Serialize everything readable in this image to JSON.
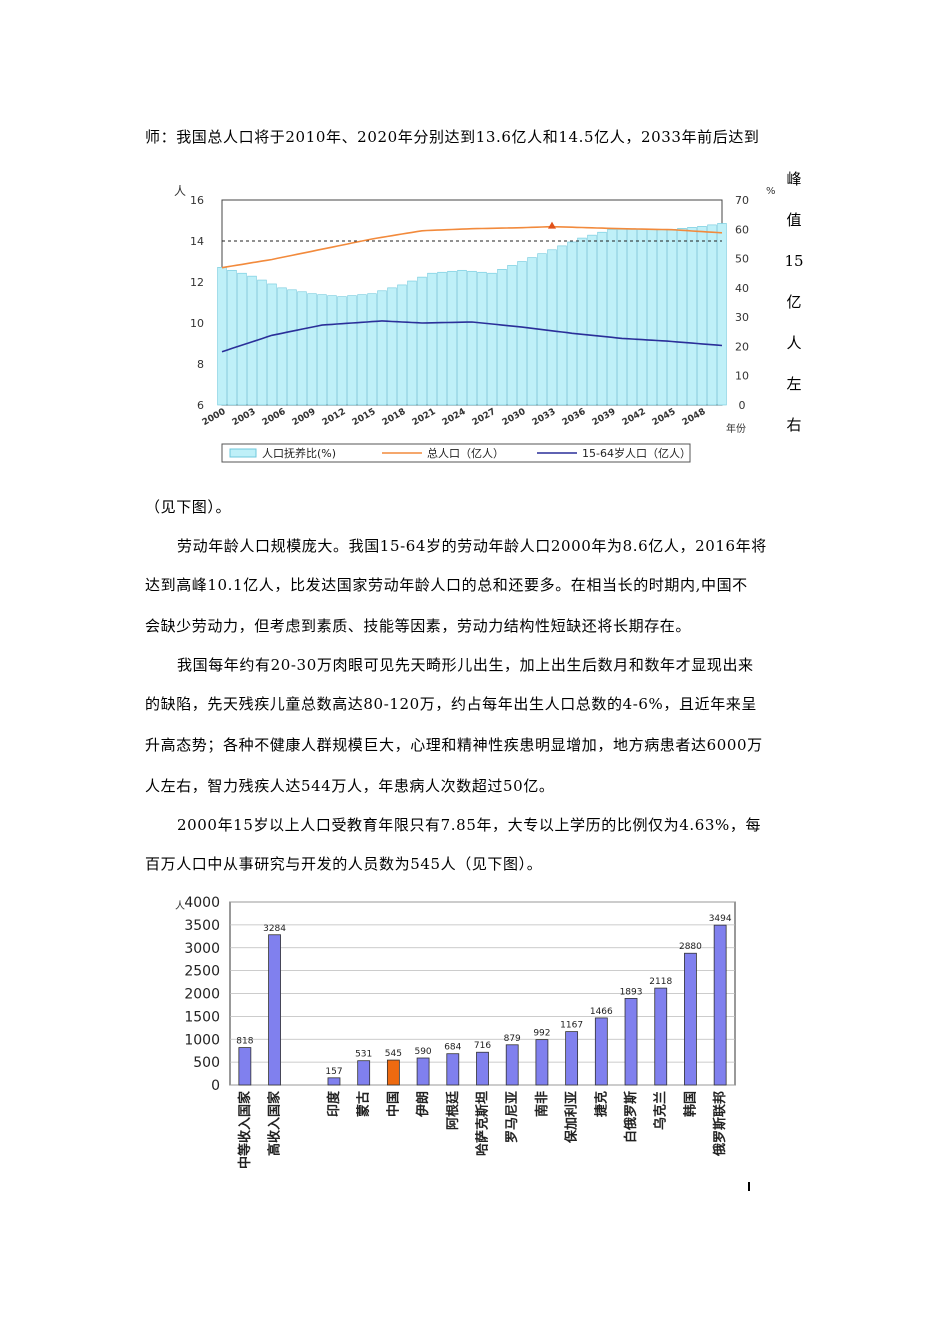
{
  "paragraphs": {
    "p1_line1": "师：我国总人口将于2010年、2020年分别达到13.6亿人和14.5亿人，2033年前后达到",
    "p1_vertical": [
      "峰",
      "值",
      "15",
      "亿",
      "人",
      "左",
      "右"
    ],
    "p1_line2": "（见下图）。",
    "p2_line1": "劳动年龄人口规模庞大。我国15-64岁的劳动年龄人口2000年为8.6亿人，2016年将",
    "p2_line2": "达到高峰10.1亿人，比发达国家劳动年龄人口的总和还要多。在相当长的时期内,中国不",
    "p2_line3": "会缺少劳动力，但考虑到素质、技能等因素，劳动力结构性短缺还将长期存在。",
    "p3_line1": "我国每年约有20-30万肉眼可见先天畸形儿出生，加上出生后数月和数年才显现出来",
    "p3_line2": "的缺陷，先天残疾儿童总数高达80-120万，约占每年出生人口总数的4-6%，且近年来呈",
    "p3_line3": "升高态势；各种不健康人群规模巨大，心理和精神性疾患明显增加，地方病患者达6000万",
    "p3_line4": "人左右，智力残疾人达544万人，年患病人次数超过50亿。",
    "p4_line1": "2000年15岁以上人口受教育年限只有7.85年，大专以上学历的比例仅为4.63%，每",
    "p4_line2": "百万人口中从事研究与开发的人员数为545人（见下图）。"
  },
  "chart_data": [
    {
      "type": "bar",
      "title": "",
      "xlabel": "年份",
      "ylabel_left": "人",
      "ylabel_right": "%",
      "ylim_left": [
        6,
        16
      ],
      "ylim_right": [
        0,
        70
      ],
      "left_ticks": [
        "16",
        "14",
        "12",
        "10",
        "8",
        "6"
      ],
      "right_ticks": [
        "70",
        "60",
        "50",
        "40",
        "30",
        "20",
        "10",
        "0"
      ],
      "x_ticks": [
        "2000",
        "2003",
        "2006",
        "2009",
        "2012",
        "2015",
        "2018",
        "2021",
        "2024",
        "2027",
        "2030",
        "2033",
        "2036",
        "2039",
        "2042",
        "2045",
        "2048",
        "年份"
      ],
      "x": [
        2000,
        2010,
        2020,
        2030,
        2033,
        2040,
        2050
      ],
      "series": [
        {
          "name": "人口抚养比(%)",
          "axis": "right",
          "kind": "bar",
          "x": [
            2000,
            2003,
            2006,
            2009,
            2012,
            2015,
            2018,
            2021,
            2024,
            2027,
            2030,
            2033,
            2036,
            2039,
            2042,
            2045,
            2048,
            2050
          ],
          "values": [
            47,
            44,
            40,
            38,
            37,
            38,
            41,
            45,
            46,
            45,
            49,
            53,
            57,
            60,
            60,
            60,
            61,
            62
          ]
        },
        {
          "name": "总人口（亿人）",
          "axis": "left",
          "kind": "line",
          "x": [
            2000,
            2005,
            2010,
            2015,
            2020,
            2025,
            2030,
            2033,
            2040,
            2045,
            2050
          ],
          "values": [
            12.7,
            13.1,
            13.6,
            14.1,
            14.5,
            14.6,
            14.65,
            14.7,
            14.6,
            14.55,
            14.4
          ]
        },
        {
          "name": "15-64岁人口（亿人）",
          "axis": "left",
          "kind": "line",
          "x": [
            2000,
            2005,
            2010,
            2016,
            2020,
            2025,
            2030,
            2035,
            2040,
            2045,
            2050
          ],
          "values": [
            8.6,
            9.4,
            9.9,
            10.1,
            10.0,
            10.05,
            9.8,
            9.5,
            9.25,
            9.1,
            8.9
          ]
        }
      ],
      "peak_marker": {
        "x": 2033,
        "value": 14.7
      },
      "reference_line": 14
    },
    {
      "type": "bar",
      "title": "",
      "ylabel": "人",
      "ylim": [
        0,
        4000
      ],
      "y_ticks": [
        "4000",
        "3500",
        "3000",
        "2500",
        "2000",
        "1500",
        "1000",
        "500",
        "0"
      ],
      "categories": [
        "中等收入国家",
        "高收入国家",
        "",
        "印度",
        "蒙古",
        "中国",
        "伊朗",
        "阿根廷",
        "哈萨克斯坦",
        "罗马尼亚",
        "南非",
        "保加利亚",
        "捷克",
        "白俄罗斯",
        "乌克兰",
        "韩国",
        "俄罗斯联邦"
      ],
      "values": [
        818,
        3284,
        null,
        157,
        531,
        545,
        590,
        684,
        716,
        879,
        992,
        1167,
        1466,
        1893,
        2118,
        2880,
        3494
      ],
      "value_labels": [
        "818",
        "3284",
        "",
        "157",
        "531",
        "545",
        "590",
        "684",
        "716",
        "879",
        "992",
        "1167",
        "1466",
        "1893",
        "2118",
        "2880",
        "3494"
      ],
      "highlight_index": 5,
      "colors": {
        "bar": "#8080ee",
        "highlight": "#ee6a10"
      }
    }
  ],
  "colors": {
    "chart1_area": "#bff0f8",
    "chart1_bar_stroke": "#6fc8dc",
    "total_line": "#f28a3c",
    "labor_line": "#2a2f99",
    "marker": "#e0521a"
  }
}
